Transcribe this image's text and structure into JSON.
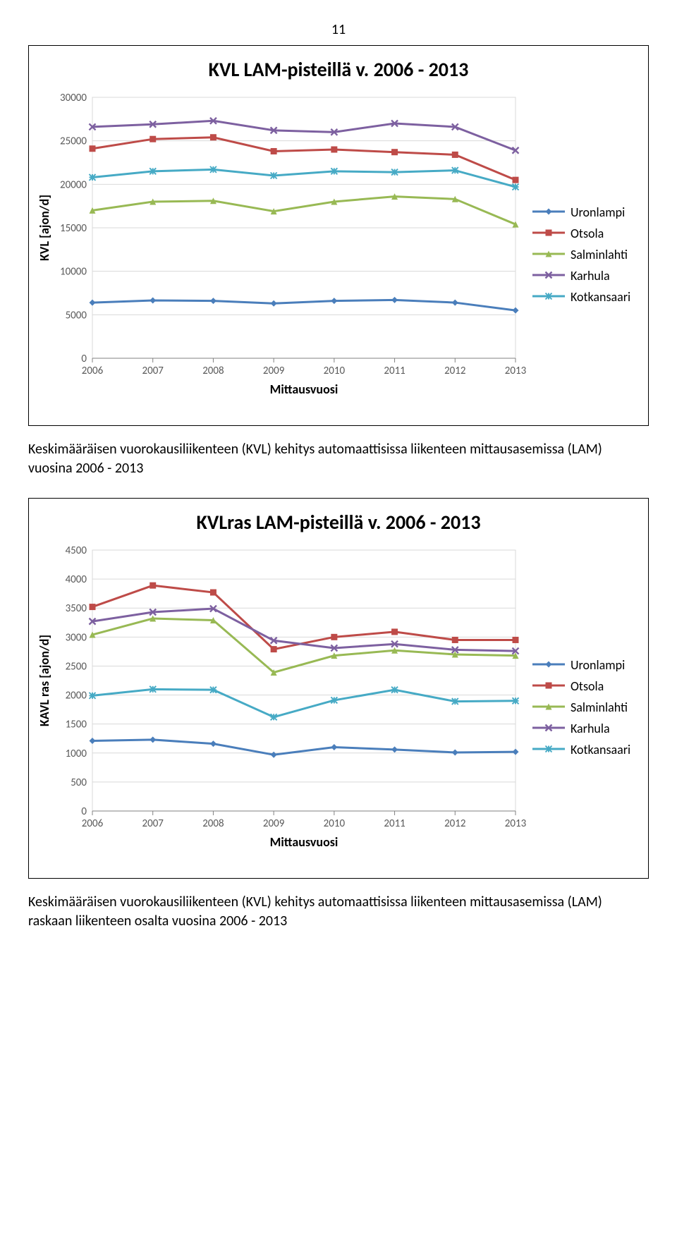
{
  "page_number": "11",
  "chart1": {
    "type": "line",
    "title": "KVL LAM-pisteillä v. 2006 - 2013",
    "y_label": "KVL [ajon/d]",
    "x_label": "Mittausvuosi",
    "categories": [
      "2006",
      "2007",
      "2008",
      "2009",
      "2010",
      "2011",
      "2012",
      "2013"
    ],
    "ylim": [
      0,
      30000
    ],
    "y_ticks": [
      0,
      5000,
      10000,
      15000,
      20000,
      25000,
      30000
    ],
    "background_color": "#ffffff",
    "grid_color": "#d9d9d9",
    "axis_color": "#808080",
    "title_fontsize": 28,
    "label_fontsize": 18,
    "tick_fontsize": 15,
    "line_width": 3,
    "marker_size": 9,
    "series": [
      {
        "name": "Uronlampi",
        "color": "#4a7ebb",
        "marker": "diamond",
        "values": [
          6400,
          6650,
          6600,
          6300,
          6600,
          6700,
          6400,
          5500
        ]
      },
      {
        "name": "Otsola",
        "color": "#be4b48",
        "marker": "square",
        "values": [
          24100,
          25200,
          25400,
          23800,
          24000,
          23700,
          23400,
          20500
        ]
      },
      {
        "name": "Salminlahti",
        "color": "#98b954",
        "marker": "triangle",
        "values": [
          17000,
          18000,
          18100,
          16900,
          18000,
          18600,
          18300,
          15400
        ]
      },
      {
        "name": "Karhula",
        "color": "#7d60a0",
        "marker": "x",
        "values": [
          26600,
          26900,
          27300,
          26200,
          26000,
          27000,
          26600,
          23900
        ]
      },
      {
        "name": "Kotkansaari",
        "color": "#46aac5",
        "marker": "asterisk",
        "values": [
          20800,
          21500,
          21700,
          21000,
          21500,
          21400,
          21600,
          19700
        ]
      }
    ]
  },
  "caption1": "Keskimääräisen vuorokausiliikenteen (KVL) kehitys automaattisissa liikenteen mittausasemissa (LAM) vuosina 2006 - 2013",
  "chart2": {
    "type": "line",
    "title": "KVLras LAM-pisteillä v. 2006 - 2013",
    "y_label": "KAVL ras [ajon/d]",
    "x_label": "Mittausvuosi",
    "categories": [
      "2006",
      "2007",
      "2008",
      "2009",
      "2010",
      "2011",
      "2012",
      "2013"
    ],
    "ylim": [
      0,
      4500
    ],
    "y_ticks": [
      0,
      500,
      1000,
      1500,
      2000,
      2500,
      3000,
      3500,
      4000,
      4500
    ],
    "background_color": "#ffffff",
    "grid_color": "#d9d9d9",
    "axis_color": "#808080",
    "title_fontsize": 28,
    "label_fontsize": 18,
    "tick_fontsize": 15,
    "line_width": 3,
    "marker_size": 9,
    "series": [
      {
        "name": "Uronlampi",
        "color": "#4a7ebb",
        "marker": "diamond",
        "values": [
          1210,
          1230,
          1160,
          970,
          1100,
          1060,
          1010,
          1020
        ]
      },
      {
        "name": "Otsola",
        "color": "#be4b48",
        "marker": "square",
        "values": [
          3520,
          3890,
          3770,
          2790,
          3000,
          3090,
          2950,
          2950
        ]
      },
      {
        "name": "Salminlahti",
        "color": "#98b954",
        "marker": "triangle",
        "values": [
          3040,
          3320,
          3290,
          2390,
          2680,
          2770,
          2700,
          2680
        ]
      },
      {
        "name": "Karhula",
        "color": "#7d60a0",
        "marker": "x",
        "values": [
          3270,
          3430,
          3490,
          2940,
          2810,
          2880,
          2780,
          2760
        ]
      },
      {
        "name": "Kotkansaari",
        "color": "#46aac5",
        "marker": "asterisk",
        "values": [
          1990,
          2100,
          2090,
          1620,
          1910,
          2090,
          1890,
          1900
        ]
      }
    ]
  },
  "caption2": "Keskimääräisen vuorokausiliikenteen (KVL) kehitys automaattisissa liikenteen mittausasemissa (LAM) raskaan liikenteen osalta vuosina 2006 - 2013"
}
